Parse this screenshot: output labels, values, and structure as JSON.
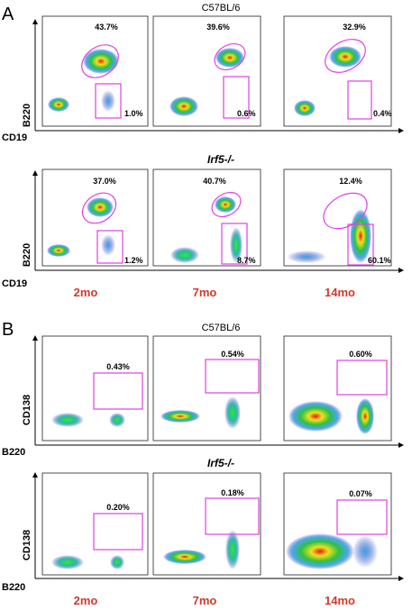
{
  "figure": {
    "panels": [
      {
        "letter": "A",
        "x_marker": "CD19",
        "groups": [
          {
            "title": "C57BL/6",
            "title_style": "plain",
            "y_marker": "B220",
            "plots": [
              {
                "top_pct": "43.7%",
                "bottom_pct": "1.0%"
              },
              {
                "top_pct": "39.6%",
                "bottom_pct": "0.6%"
              },
              {
                "top_pct": "32.9%",
                "bottom_pct": "0.4%"
              }
            ]
          },
          {
            "title": "Irf5-/-",
            "title_style": "italic",
            "y_marker": "B220",
            "plots": [
              {
                "top_pct": "37.0%",
                "bottom_pct": "1.2%"
              },
              {
                "top_pct": "40.7%",
                "bottom_pct": "8.7%"
              },
              {
                "top_pct": "12.4%",
                "bottom_pct": "60.1%"
              }
            ]
          }
        ]
      },
      {
        "letter": "B",
        "x_marker": "B220",
        "groups": [
          {
            "title": "C57BL/6",
            "title_style": "plain",
            "y_marker": "CD138",
            "plots": [
              {
                "gate_pct": "0.43%"
              },
              {
                "gate_pct": "0.54%"
              },
              {
                "gate_pct": "0.60%"
              }
            ]
          },
          {
            "title": "Irf5-/-",
            "title_style": "italic",
            "y_marker": "CD138",
            "plots": [
              {
                "gate_pct": "0.20%"
              },
              {
                "gate_pct": "0.18%"
              },
              {
                "gate_pct": "0.07%"
              }
            ]
          }
        ]
      }
    ],
    "timepoints": [
      "2mo",
      "7mo",
      "14mo"
    ],
    "colors": {
      "gate": "#e040e0",
      "timepoint_label": "#d03a2c",
      "density_low": "#2030c0",
      "density_mid": "#20c040",
      "density_high": "#f0e020",
      "density_peak": "#e02010"
    }
  }
}
